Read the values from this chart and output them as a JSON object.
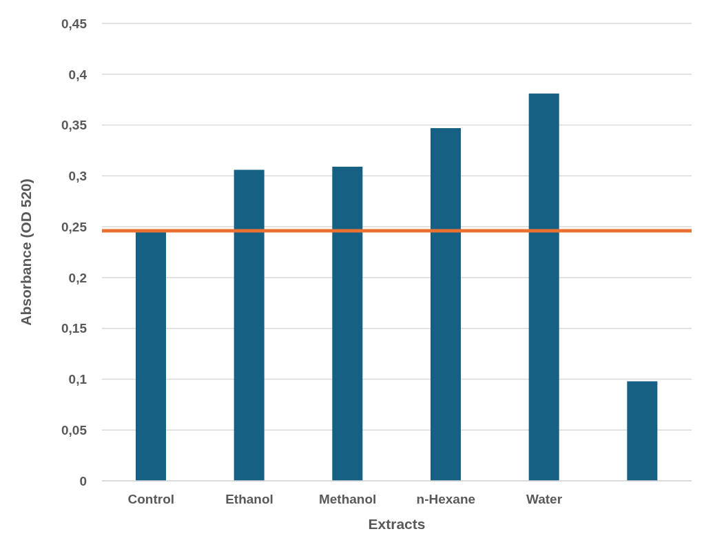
{
  "chart_data": {
    "type": "bar",
    "xlabel": "Extracts",
    "ylabel": "Absorbance (OD 520)",
    "categories": [
      "Control",
      "Ethanol",
      "Methanol",
      "n-Hexane",
      "Water",
      null
    ],
    "values": [
      0.245,
      0.306,
      0.309,
      0.347,
      0.381,
      0.098
    ],
    "color": "#166083",
    "ylim": [
      0,
      0.45
    ],
    "yticks": [
      {
        "value": 0,
        "label": "0"
      },
      {
        "value": 0.05,
        "label": "0,05"
      },
      {
        "value": 0.1,
        "label": "0,1"
      },
      {
        "value": 0.15,
        "label": "0,15"
      },
      {
        "value": 0.2,
        "label": "0,2"
      },
      {
        "value": 0.25,
        "label": "0,25"
      },
      {
        "value": 0.3,
        "label": "0,3"
      },
      {
        "value": 0.35,
        "label": "0,35"
      },
      {
        "value": 0.4,
        "label": "0,4"
      },
      {
        "value": 0.45,
        "label": "0,45"
      }
    ],
    "grid": "y",
    "ref_lines": [
      {
        "axis": "y",
        "value": 0.246,
        "color": "#e97132"
      }
    ]
  }
}
